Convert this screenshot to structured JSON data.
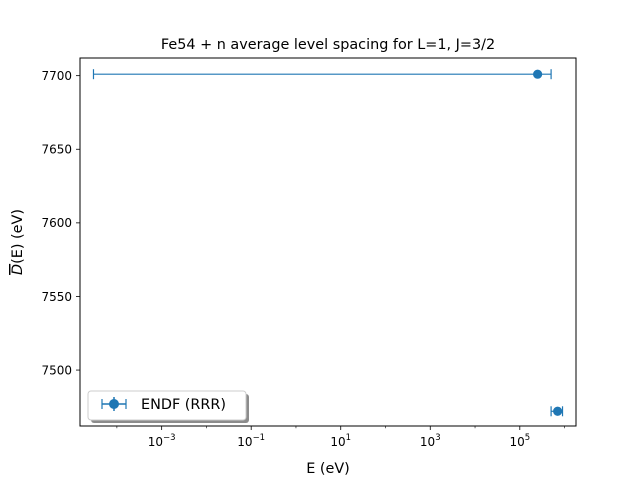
{
  "chart_data": {
    "type": "scatter",
    "title": "Fe54 + n average level spacing for L=1, J=3/2",
    "xlabel": "E (eV)",
    "ylabel_parts": {
      "overline": "D",
      "rest": "(E) (eV)"
    },
    "xscale": "log",
    "xlim": [
      1.5e-05,
      1800000.0
    ],
    "ylim": [
      7462,
      7712
    ],
    "x_ticks": [
      {
        "value": 0.001,
        "base": "10",
        "exp": "−3"
      },
      {
        "value": 0.1,
        "base": "10",
        "exp": "−1"
      },
      {
        "value": 10,
        "base": "10",
        "exp": "1"
      },
      {
        "value": 1000,
        "base": "10",
        "exp": "3"
      },
      {
        "value": 100000,
        "base": "10",
        "exp": "5"
      }
    ],
    "y_ticks": [
      {
        "value": 7500,
        "label": "7500"
      },
      {
        "value": 7550,
        "label": "7550"
      },
      {
        "value": 7600,
        "label": "7600"
      },
      {
        "value": 7650,
        "label": "7650"
      },
      {
        "value": 7700,
        "label": "7700"
      }
    ],
    "series": [
      {
        "name": "ENDF (RRR)",
        "color": "#1f77b4",
        "marker": "circle",
        "points": [
          {
            "x": 250000,
            "y": 7701,
            "xerr_low": 249999.99997,
            "xerr_high": 250000
          },
          {
            "x": 700000,
            "y": 7472,
            "xerr_low": 200000,
            "xerr_high": 200000
          }
        ]
      }
    ],
    "legend": {
      "location": "lower-left"
    },
    "grid": false
  }
}
